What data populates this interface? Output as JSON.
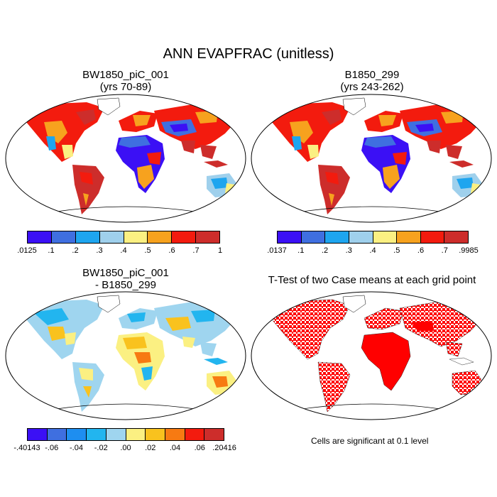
{
  "main_title": "ANN EVAPFRAC (unitless)",
  "panels": [
    {
      "title_line1": "BW1850_piC_001",
      "title_line2": "(yrs 70-89)"
    },
    {
      "title_line1": "B1850_299",
      "title_line2": "(yrs 243-262)"
    },
    {
      "title_line1": "BW1850_piC_001",
      "title_line2": "- B1850_299"
    },
    {
      "title_line1": "T-Test of two Case means at each grid point",
      "title_line2": ""
    }
  ],
  "colorbars": [
    {
      "colors": [
        "#3b10f5",
        "#3f6fe0",
        "#1ea5ef",
        "#9fd0ec",
        "#fbf082",
        "#f7a21e",
        "#f31b0e",
        "#cd2d2b"
      ],
      "labels": [
        ".0125",
        ".1",
        ".2",
        ".3",
        ".4",
        ".5",
        ".6",
        ".7",
        "1"
      ]
    },
    {
      "colors": [
        "#3b10f5",
        "#3f6fe0",
        "#1ea5ef",
        "#9fd0ec",
        "#fbf082",
        "#f7a21e",
        "#f31b0e",
        "#cd2d2b"
      ],
      "labels": [
        ".0137",
        ".1",
        ".2",
        ".3",
        ".4",
        ".5",
        ".6",
        ".7",
        ".9985"
      ]
    },
    {
      "colors": [
        "#3b10f5",
        "#3f6fe0",
        "#1e8ef0",
        "#22b5ef",
        "#9fd5ef",
        "#fbf082",
        "#f9c21e",
        "#f77a12",
        "#f31b0e",
        "#cd2d2b"
      ],
      "labels": [
        "-.40143",
        "-.06",
        "-.04",
        "-.02",
        ".00",
        ".02",
        ".04",
        ".06",
        ".20416"
      ]
    }
  ],
  "significance_note": "Cells are significant at 0.1 level",
  "colors": {
    "ttest_fill": "#ff0000",
    "coastline": "#000000"
  }
}
